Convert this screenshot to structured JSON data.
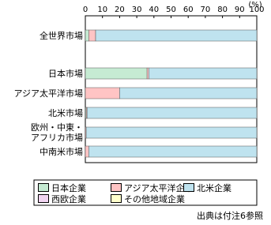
{
  "chart_data": {
    "type": "stacked-bar-horizontal",
    "unit": "(%)",
    "categories": [
      "全世界市場",
      "日本市場",
      "アジア太平洋市場",
      "北米市場",
      "欧州・中東・アフリカ市場",
      "中南米市場"
    ],
    "series": [
      {
        "name": "日本企業",
        "color": "#c6ebd3",
        "values": [
          2,
          36,
          0,
          0.5,
          0,
          0
        ]
      },
      {
        "name": "アジア太平洋企業",
        "color": "#ffc4c4",
        "values": [
          4,
          1,
          20,
          0.5,
          0.5,
          2
        ]
      },
      {
        "name": "北米企業",
        "color": "#bfe3ef",
        "values": [
          94,
          63,
          80,
          99,
          99.5,
          98
        ]
      },
      {
        "name": "西欧企業",
        "color": "#f2d5f2",
        "values": [
          0,
          0,
          0,
          0,
          0,
          0
        ]
      },
      {
        "name": "その他地域企業",
        "color": "#ffffcc",
        "values": [
          0,
          0,
          0,
          0,
          0,
          0
        ]
      }
    ],
    "xlim": [
      0,
      100
    ],
    "xticks": [
      0,
      10,
      20,
      30,
      40,
      50,
      60,
      70,
      80,
      90,
      100
    ],
    "source": "出典は付注6参照"
  }
}
